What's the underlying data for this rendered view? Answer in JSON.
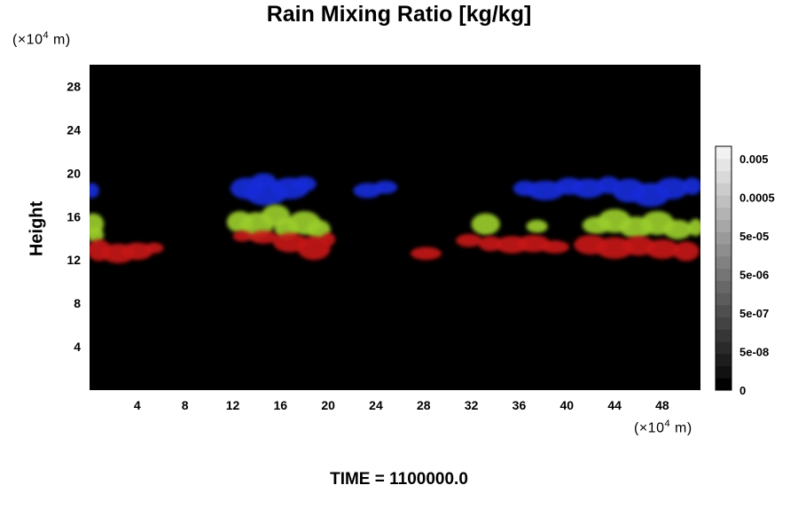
{
  "chart_data": {
    "type": "heatmap",
    "title": "Rain Mixing Ratio [kg/kg]",
    "ylabel": "Height",
    "xlabel": "",
    "x_unit": "(×10",
    "x_unit_exp": "4",
    "x_unit_tail": " m)",
    "y_unit": "(×10",
    "y_unit_exp": "4",
    "y_unit_tail": " m)",
    "xlim": [
      0,
      51.2
    ],
    "ylim": [
      0,
      30
    ],
    "x_ticks": [
      4,
      8,
      12,
      16,
      20,
      24,
      28,
      32,
      36,
      40,
      44,
      48
    ],
    "x_tick_labels": [
      "4",
      "8",
      "12",
      "16",
      "20",
      "24",
      "28",
      "32",
      "36",
      "40",
      "44",
      "48"
    ],
    "y_ticks": [
      4,
      8,
      12,
      16,
      20,
      24,
      28
    ],
    "y_tick_labels": [
      "4",
      "8",
      "12",
      "16",
      "20",
      "24",
      "28"
    ],
    "background_color": "#000000",
    "colorbar": {
      "labels": [
        "0.005",
        "0.0005",
        "5e-05",
        "5e-06",
        "5e-07",
        "5e-08",
        "0"
      ],
      "colors": [
        "#000000",
        "#111111",
        "#1d1d1d",
        "#2a2a2a",
        "#363636",
        "#434343",
        "#4f4f4f",
        "#5c5c5c",
        "#686868",
        "#757575",
        "#818181",
        "#8e8e8e",
        "#9a9a9a",
        "#a7a7a7",
        "#b3b3b3",
        "#c0c0c0",
        "#cccccc",
        "#d9d9d9",
        "#e5e5e5",
        "#f2f2f2"
      ]
    },
    "layers": [
      {
        "color": "#1a2bd8",
        "name": "",
        "blobs": [
          [
            0.2,
            18.4,
            0.6,
            0.7
          ],
          [
            13.2,
            18.6,
            1.4,
            1.0
          ],
          [
            14.8,
            18.2,
            1.8,
            1.2
          ],
          [
            16.8,
            18.6,
            1.6,
            1.0
          ],
          [
            18.0,
            19.0,
            1.0,
            0.7
          ],
          [
            14.6,
            19.4,
            1.0,
            0.6
          ],
          [
            23.3,
            18.4,
            1.2,
            0.7
          ],
          [
            24.8,
            18.7,
            1.0,
            0.6
          ],
          [
            36.5,
            18.6,
            1.0,
            0.7
          ],
          [
            38.2,
            18.4,
            1.6,
            0.9
          ],
          [
            40.2,
            18.8,
            1.2,
            0.8
          ],
          [
            41.8,
            18.6,
            1.4,
            0.9
          ],
          [
            43.5,
            18.9,
            1.0,
            0.8
          ],
          [
            45.2,
            18.4,
            1.4,
            1.1
          ],
          [
            47.0,
            18.0,
            1.6,
            1.1
          ],
          [
            48.8,
            18.6,
            1.4,
            1.0
          ],
          [
            50.5,
            18.8,
            0.8,
            0.8
          ]
        ]
      },
      {
        "color": "#9acc2a",
        "name": "",
        "blobs": [
          [
            0.3,
            15.3,
            0.9,
            1.0
          ],
          [
            0.5,
            14.3,
            0.7,
            0.7
          ],
          [
            12.6,
            15.5,
            1.1,
            1.0
          ],
          [
            14.0,
            15.2,
            1.4,
            1.2
          ],
          [
            15.6,
            16.1,
            1.2,
            1.0
          ],
          [
            16.5,
            14.9,
            1.0,
            1.0
          ],
          [
            18.0,
            15.4,
            1.4,
            1.1
          ],
          [
            19.2,
            14.8,
            1.0,
            0.9
          ],
          [
            33.2,
            15.3,
            1.2,
            1.0
          ],
          [
            37.5,
            15.1,
            0.9,
            0.6
          ],
          [
            42.5,
            15.2,
            1.2,
            0.8
          ],
          [
            44.0,
            15.6,
            1.4,
            1.1
          ],
          [
            45.8,
            15.0,
            1.4,
            1.0
          ],
          [
            47.6,
            15.4,
            1.4,
            1.1
          ],
          [
            49.3,
            14.8,
            1.2,
            0.9
          ],
          [
            50.8,
            15.0,
            0.6,
            0.8
          ]
        ]
      },
      {
        "color": "#c41a14",
        "name": "",
        "blobs": [
          [
            0.8,
            12.9,
            1.0,
            1.0
          ],
          [
            2.4,
            12.6,
            1.4,
            0.9
          ],
          [
            4.0,
            12.8,
            1.3,
            0.8
          ],
          [
            5.4,
            13.1,
            0.8,
            0.5
          ],
          [
            12.8,
            14.2,
            0.8,
            0.5
          ],
          [
            14.6,
            14.1,
            1.2,
            0.6
          ],
          [
            16.8,
            13.6,
            1.4,
            0.9
          ],
          [
            18.8,
            13.1,
            1.4,
            1.1
          ],
          [
            20.0,
            13.9,
            0.6,
            0.6
          ],
          [
            28.2,
            12.6,
            1.3,
            0.6
          ],
          [
            31.8,
            13.8,
            1.1,
            0.6
          ],
          [
            33.6,
            13.5,
            1.0,
            0.7
          ],
          [
            35.4,
            13.4,
            1.4,
            0.8
          ],
          [
            37.2,
            13.5,
            1.4,
            0.8
          ],
          [
            39.0,
            13.2,
            1.2,
            0.6
          ],
          [
            42.0,
            13.4,
            1.4,
            0.9
          ],
          [
            44.0,
            13.1,
            1.6,
            1.0
          ],
          [
            46.0,
            13.3,
            1.4,
            0.9
          ],
          [
            48.0,
            13.0,
            1.4,
            0.9
          ],
          [
            50.0,
            12.8,
            1.1,
            0.9
          ]
        ]
      }
    ]
  },
  "footer": {
    "time_label": "TIME = 1100000.0"
  }
}
